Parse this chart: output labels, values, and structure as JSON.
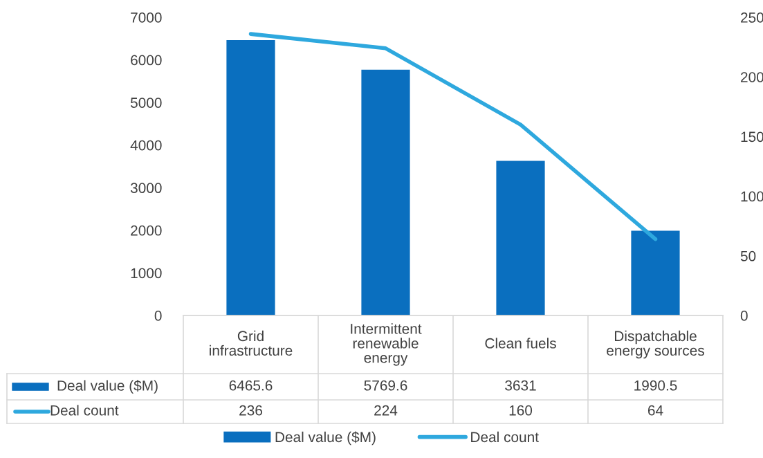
{
  "chart_data": {
    "type": "bar",
    "categories": [
      "Grid\ninfrastructure",
      "Intermittent\nrenewable\nenergy",
      "Clean fuels",
      "Dispatchable\nenergy sources"
    ],
    "series": [
      {
        "name": "Deal value ($M)",
        "color": "#0a6fbf",
        "values": [
          6465.6,
          5769.6,
          3631,
          1990.5
        ]
      },
      {
        "name": "Deal count",
        "type": "line",
        "axis": "y2",
        "color": "#2ea8de",
        "values": [
          236,
          224,
          160,
          64
        ]
      }
    ],
    "ylim": [
      0,
      7000
    ],
    "yticks": [
      0,
      1000,
      2000,
      3000,
      4000,
      5000,
      6000,
      7000
    ],
    "y2lim": [
      0,
      250
    ],
    "y2ticks": [
      0,
      50,
      100,
      150,
      200,
      250
    ],
    "data_labels": true,
    "grid": false,
    "legend": "bottom",
    "marker": "none",
    "line_style": "solid"
  }
}
